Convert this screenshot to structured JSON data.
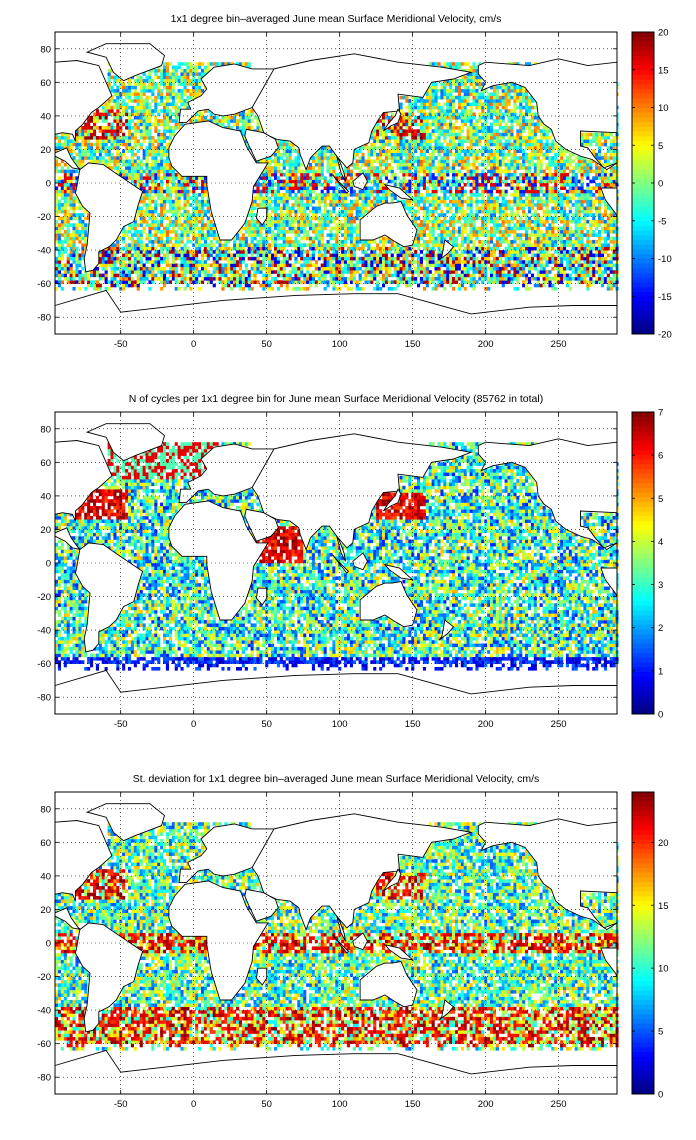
{
  "figure": {
    "background": "#ffffff",
    "ocean_background": "#ffffff",
    "grid_style": "dotted",
    "colormap": "jet"
  },
  "chart_data": [
    {
      "type": "heatmap",
      "title": "1x1 degree bin–averaged June mean Surface Meridional Velocity, cm/s",
      "xlabel": "",
      "ylabel": "",
      "xlim": [
        -95,
        290
      ],
      "ylim": [
        -90,
        90
      ],
      "x_ticks": [
        -50,
        0,
        50,
        100,
        150,
        200,
        250
      ],
      "y_ticks": [
        80,
        60,
        40,
        20,
        0,
        -20,
        -40,
        -60,
        -80
      ],
      "grid": true,
      "colorbar": {
        "min": -20,
        "max": 20,
        "ticks": [
          20,
          15,
          10,
          5,
          0,
          -5,
          -10,
          -15,
          -20
        ]
      },
      "field": "meridional_velocity",
      "description_values": {
        "typical_range": [
          -20,
          20
        ]
      }
    },
    {
      "type": "heatmap",
      "title": "N of cycles per 1x1 degree bin for June mean Surface Meridional Velocity (85762 in total)",
      "xlabel": "",
      "ylabel": "",
      "xlim": [
        -95,
        290
      ],
      "ylim": [
        -90,
        90
      ],
      "x_ticks": [
        -50,
        0,
        50,
        100,
        150,
        200,
        250
      ],
      "y_ticks": [
        80,
        60,
        40,
        20,
        0,
        -20,
        -40,
        -60,
        -80
      ],
      "grid": true,
      "colorbar": {
        "min": 0,
        "max": 7,
        "ticks": [
          7,
          6,
          5,
          4,
          3,
          2,
          1,
          0
        ]
      },
      "field": "cycle_count",
      "total": 85762
    },
    {
      "type": "heatmap",
      "title": "St. deviation for 1x1 degree bin–averaged June mean Surface Meridional Velocity, cm/s",
      "xlabel": "",
      "ylabel": "",
      "xlim": [
        -95,
        290
      ],
      "ylim": [
        -90,
        90
      ],
      "x_ticks": [
        -50,
        0,
        50,
        100,
        150,
        200,
        250
      ],
      "y_ticks": [
        80,
        60,
        40,
        20,
        0,
        -20,
        -40,
        -60,
        -80
      ],
      "grid": true,
      "colorbar": {
        "min": 0,
        "max": 24,
        "ticks": [
          20,
          15,
          10,
          5,
          0
        ]
      },
      "field": "std_deviation"
    }
  ]
}
